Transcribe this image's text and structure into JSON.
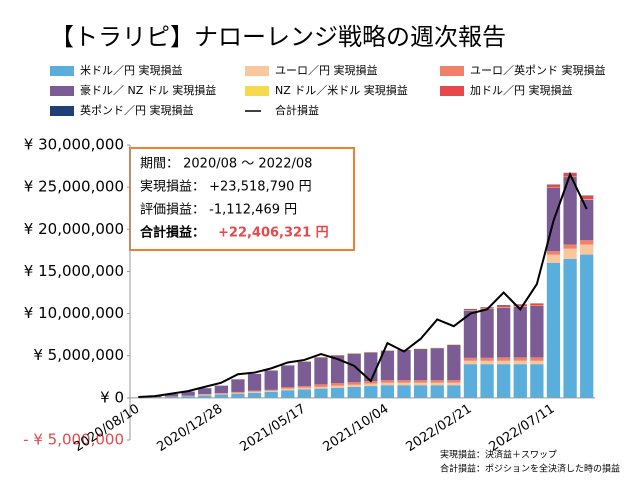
{
  "chart_data": {
    "type": "bar",
    "stacked": true,
    "title": "【トラリピ】ナローレンジ戦略の週次報告",
    "categories": [
      "2020/08/10",
      null,
      null,
      null,
      null,
      "2020/12/28",
      null,
      null,
      null,
      null,
      "2021/05/17",
      null,
      null,
      null,
      null,
      "2021/10/04",
      null,
      null,
      null,
      null,
      "2022/02/21",
      null,
      null,
      null,
      null,
      "2022/07/11",
      null,
      null
    ],
    "ylim": [
      -5000000,
      30000000
    ],
    "yticks": [
      {
        "value": -5000000,
        "label": "- ¥ 5,000,000"
      },
      {
        "value": 0,
        "label": "¥ 0"
      },
      {
        "value": 5000000,
        "label": "¥ 5,000,000"
      },
      {
        "value": 10000000,
        "label": "¥ 10,000,000"
      },
      {
        "value": 15000000,
        "label": "¥ 15,000,000"
      },
      {
        "value": 20000000,
        "label": "¥ 20,000,000"
      },
      {
        "value": 25000000,
        "label": "¥ 25,000,000"
      },
      {
        "value": 30000000,
        "label": "¥ 30,000,000"
      }
    ],
    "series": [
      {
        "name": "米ドル／円 実現損益",
        "color": "#5aaedc",
        "values": [
          50000,
          100000,
          100000,
          200000,
          300000,
          400000,
          500000,
          600000,
          700000,
          900000,
          1000000,
          1100000,
          1200000,
          1300000,
          1400000,
          1500000,
          1500000,
          1500000,
          1500000,
          1500000,
          4000000,
          4000000,
          4000000,
          4000000,
          4000000,
          16000000,
          16500000,
          17000000
        ]
      },
      {
        "name": "ユーロ／円 実現損益",
        "color": "#f8c79b",
        "values": [
          0,
          0,
          50000,
          50000,
          100000,
          100000,
          100000,
          150000,
          150000,
          200000,
          200000,
          200000,
          250000,
          250000,
          300000,
          300000,
          300000,
          300000,
          300000,
          300000,
          400000,
          400000,
          400000,
          400000,
          400000,
          1000000,
          1200000,
          1200000
        ]
      },
      {
        "name": "ユーロ／英ポンド 実現損益",
        "color": "#f0806a",
        "values": [
          0,
          0,
          0,
          0,
          50000,
          50000,
          100000,
          100000,
          100000,
          150000,
          200000,
          300000,
          300000,
          300000,
          300000,
          300000,
          300000,
          300000,
          300000,
          300000,
          350000,
          350000,
          400000,
          400000,
          400000,
          400000,
          500000,
          500000
        ]
      },
      {
        "name": "豪ドル／ NZ ドル 実現損益",
        "color": "#7b5c94",
        "values": [
          0,
          100000,
          300000,
          500000,
          700000,
          900000,
          1500000,
          2000000,
          2300000,
          2600000,
          2900000,
          3200000,
          3300000,
          3400000,
          3400000,
          3500000,
          3600000,
          3700000,
          3800000,
          4200000,
          5600000,
          5800000,
          5900000,
          6000000,
          6100000,
          7500000,
          8000000,
          4800000
        ]
      },
      {
        "name": "NZ ドル／米ドル 実現損益",
        "color": "#f7d94c",
        "values": [
          0,
          0,
          0,
          0,
          0,
          0,
          0,
          0,
          0,
          0,
          50000,
          50000,
          50000,
          50000,
          50000,
          50000,
          50000,
          50000,
          50000,
          50000,
          50000,
          50000,
          50000,
          50000,
          50000,
          50000,
          50000,
          50000
        ]
      },
      {
        "name": "加ドル／円 実現損益",
        "color": "#e8474b",
        "values": [
          0,
          0,
          0,
          0,
          0,
          0,
          0,
          0,
          0,
          0,
          0,
          0,
          0,
          0,
          0,
          0,
          0,
          0,
          0,
          0,
          100000,
          100000,
          200000,
          200000,
          200000,
          300000,
          400000,
          400000
        ]
      },
      {
        "name": "英ポンド／円 実現損益",
        "color": "#1f3f78",
        "values": [
          0,
          0,
          0,
          0,
          0,
          0,
          0,
          0,
          0,
          0,
          0,
          0,
          0,
          0,
          0,
          0,
          0,
          0,
          0,
          0,
          50000,
          50000,
          50000,
          50000,
          50000,
          50000,
          50000,
          50000
        ]
      },
      {
        "name": "合計損益",
        "color": "#000000",
        "type": "line",
        "values": [
          100000,
          200000,
          500000,
          800000,
          1300000,
          1800000,
          2800000,
          3000000,
          3500000,
          4200000,
          4500000,
          5200000,
          4600000,
          3800000,
          2000000,
          6500000,
          5500000,
          7000000,
          9300000,
          8500000,
          10000000,
          10500000,
          12500000,
          10500000,
          13500000,
          21000000,
          26500000,
          22400000
        ]
      }
    ],
    "info": {
      "period": "期間： 2020/08 ～ 2022/08",
      "realized": "実現損益： +23,518,790 円",
      "unrealized": "評価損益： -1,112,469 円",
      "total_label": "合計損益：",
      "total_value": "+22,406,321 円"
    },
    "notes": [
      "実現損益：決済益＋スワップ",
      "合計損益：ポジションを全決済した時の損益"
    ]
  }
}
